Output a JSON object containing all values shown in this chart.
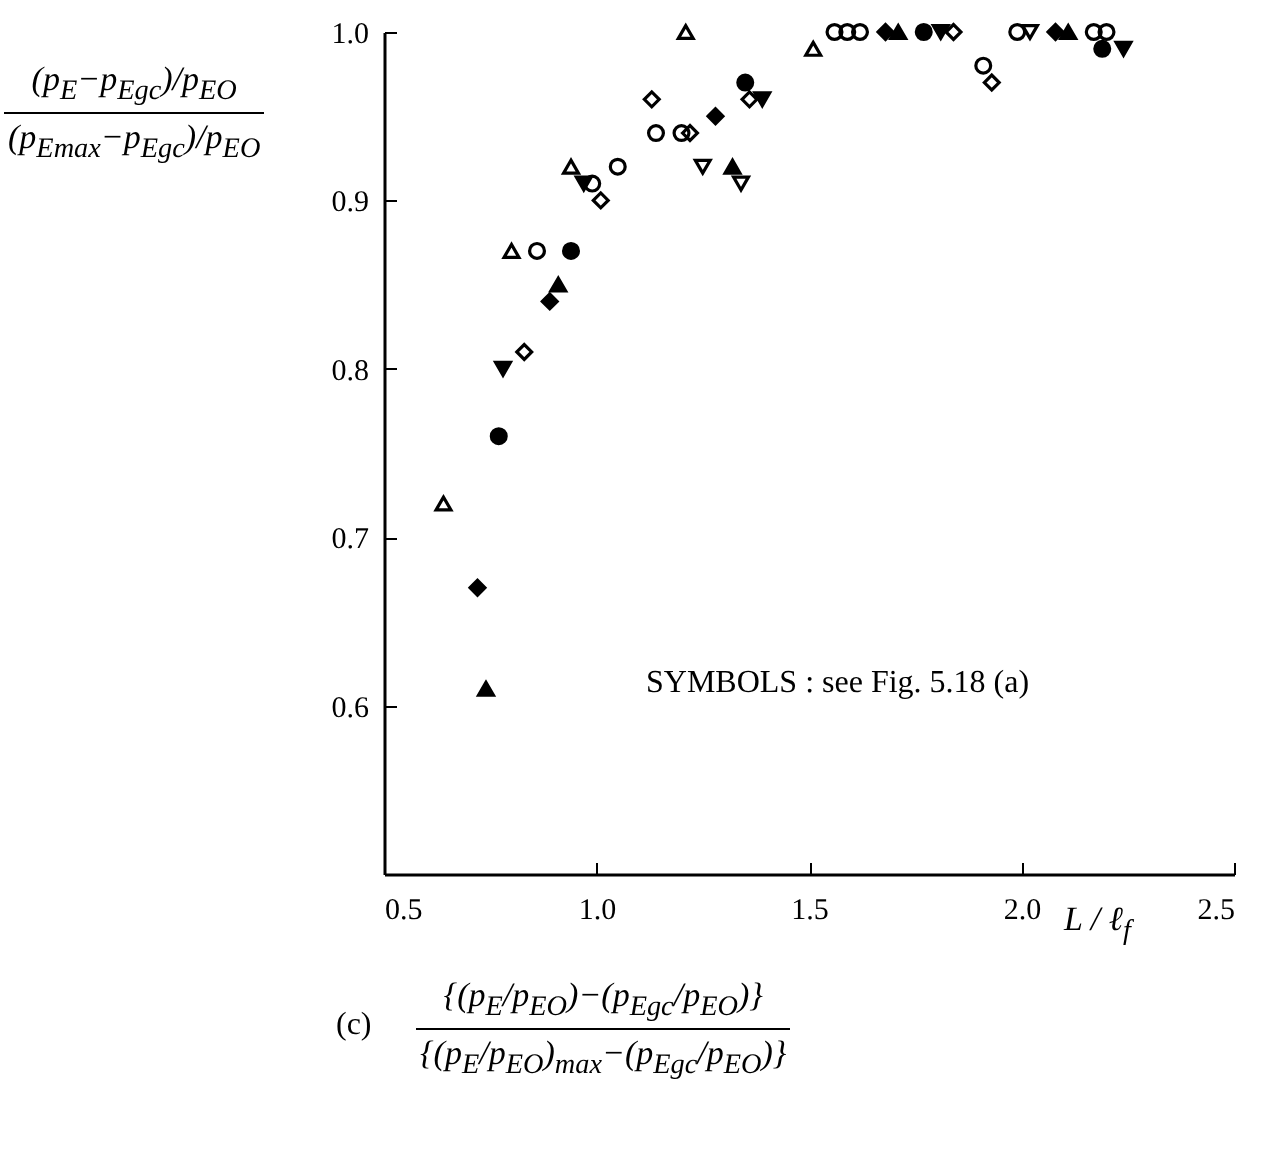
{
  "chart_data": {
    "type": "scatter",
    "ylabel": "(p$_{E}$−p$_{Egc}$)/p$_{EO}$\n(p$_{Emax}$−p$_{Egc}$)/p$_{EO}$",
    "xlabel": "L / ℓ$_{f}$",
    "annotations": [
      "SYMBOLS :  see Fig. 5.18 (a)",
      "(c)",
      "{(p$_{E}$/p$_{EO}$)−(p$_{Egc}$/p$_{EO}$)}\n{(p$_{E}$/p$_{EO}$)$_{max}$−(p$_{Egc}$/p$_{EO}$)}"
    ],
    "xlim": [
      0.5,
      2.5
    ],
    "xticks": [
      0.5,
      {
        "value": 1,
        "label": "1.0"
      },
      1.5,
      {
        "value": 2,
        "label": "2.0"
      },
      2.5
    ],
    "ylim": [
      0.5,
      1.0
    ],
    "yticks": [
      0.6,
      0.7,
      0.8,
      0.9,
      {
        "value": 1,
        "label": "1.0"
      }
    ],
    "series": [
      {
        "marker": "triangle-open",
        "color": "#000000",
        "x": [
          0.64,
          0.8,
          0.94,
          1.21,
          1.51
        ],
        "values": [
          0.72,
          0.87,
          0.92,
          1.0,
          0.99
        ]
      },
      {
        "marker": "triangle",
        "color": "#000000",
        "x": [
          0.74,
          0.91,
          1.32,
          1.71,
          2.11
        ],
        "values": [
          0.61,
          0.85,
          0.92,
          1.0,
          1.0
        ]
      },
      {
        "marker": "circle-open",
        "color": "#000000",
        "x": [
          0.86,
          1.05,
          1.14,
          1.56,
          1.62,
          1.91,
          2.2,
          0.99,
          1.2,
          1.59,
          1.99,
          2.17
        ],
        "values": [
          0.87,
          0.92,
          0.94,
          1.0,
          1.0,
          0.98,
          1.0,
          0.91,
          0.94,
          1.0,
          1.0,
          1.0
        ]
      },
      {
        "marker": "circle",
        "color": "#000000",
        "x": [
          0.77,
          0.94,
          1.35,
          1.77,
          2.19
        ],
        "values": [
          0.76,
          0.87,
          0.97,
          1.0,
          0.99
        ]
      },
      {
        "marker": "diamond-open",
        "color": "#000000",
        "x": [
          0.83,
          1.01,
          1.93,
          1.13,
          1.22,
          1.36,
          1.84
        ],
        "values": [
          0.81,
          0.9,
          0.97,
          0.96,
          0.94,
          0.96,
          1.0
        ]
      },
      {
        "marker": "diamond",
        "color": "#000000",
        "x": [
          0.72,
          0.89,
          1.28,
          1.68,
          2.08
        ],
        "values": [
          0.67,
          0.84,
          0.95,
          1.0,
          1.0
        ]
      },
      {
        "marker": "triangle-down",
        "color": "#000000",
        "x": [
          0.78,
          0.97,
          1.39,
          1.81,
          2.24
        ],
        "values": [
          0.8,
          0.91,
          0.96,
          1.0,
          0.99
        ]
      },
      {
        "marker": "triangle-down-open",
        "color": "#000000",
        "x": [
          2.02,
          1.25,
          1.34
        ],
        "values": [
          1.0,
          0.92,
          0.91
        ]
      }
    ]
  }
}
